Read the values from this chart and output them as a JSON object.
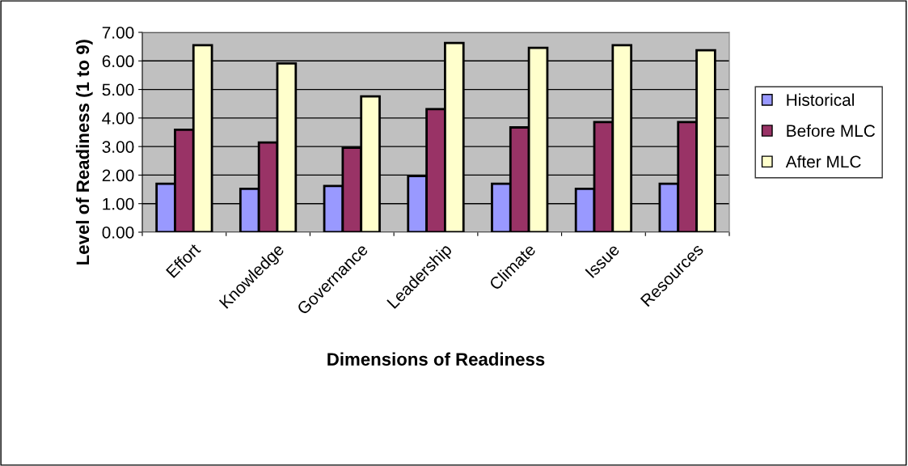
{
  "chart_data": {
    "type": "bar",
    "xlabel": "Dimensions of Readiness",
    "ylabel": "Level of Readiness (1 to 9)",
    "categories": [
      "Effort",
      "Knowledge",
      "Governance",
      "Leadership",
      "Climate",
      "Issue",
      "Resources"
    ],
    "series": [
      {
        "name": "Historical",
        "color": "#9999ff",
        "values": [
          1.7,
          1.52,
          1.62,
          1.97,
          1.7,
          1.52,
          1.7
        ]
      },
      {
        "name": "Before MLC",
        "color": "#993366",
        "values": [
          3.59,
          3.14,
          2.96,
          4.31,
          3.67,
          3.86,
          3.86
        ]
      },
      {
        "name": "After MLC",
        "color": "#ffffcc",
        "values": [
          6.55,
          5.91,
          4.76,
          6.63,
          6.46,
          6.55,
          6.37
        ]
      }
    ],
    "ylim": [
      0,
      7
    ],
    "yticks": [
      {
        "value": 0,
        "label": "0.00"
      },
      {
        "value": 1,
        "label": "1.00"
      },
      {
        "value": 2,
        "label": "2.00"
      },
      {
        "value": 3,
        "label": "3.00"
      },
      {
        "value": 4,
        "label": "4.00"
      },
      {
        "value": 5,
        "label": "5.00"
      },
      {
        "value": 6,
        "label": "6.00"
      },
      {
        "value": 7,
        "label": "7.00"
      }
    ],
    "grid": "y",
    "legend": "right"
  }
}
